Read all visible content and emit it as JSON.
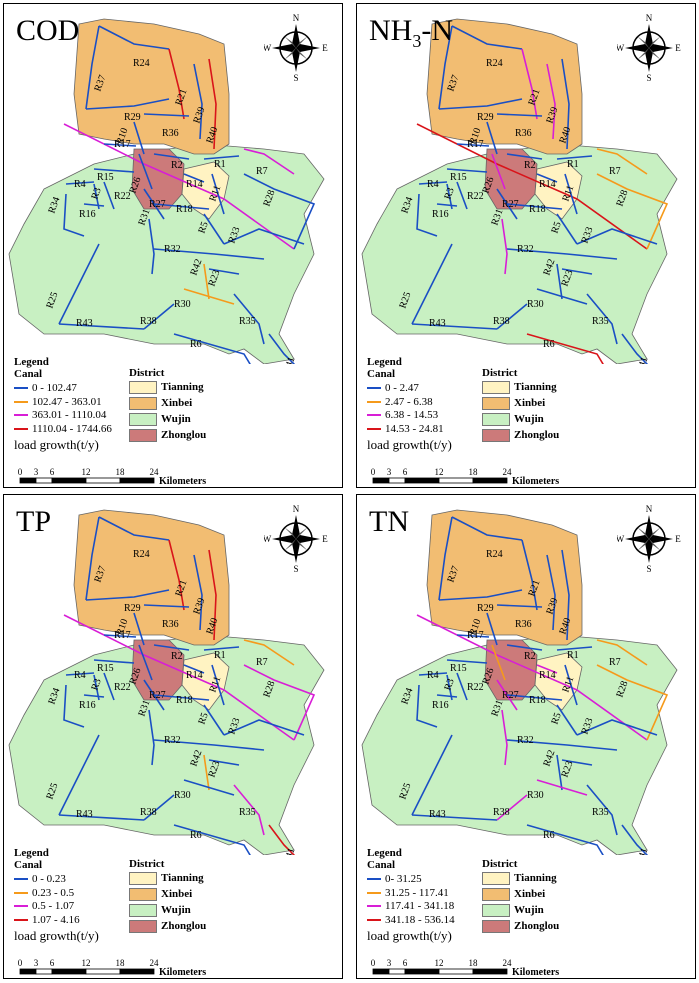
{
  "colors": {
    "class1": "#1a4fc4",
    "class2": "#f59a1b",
    "class3": "#d81ed6",
    "class4": "#d9141a",
    "tianning": "#fff3c2",
    "xinbei": "#f2bd72",
    "wujin": "#c8f0c2",
    "zhonglou": "#cc7a7a"
  },
  "legend": {
    "title": "Legend",
    "canal": "Canal",
    "load_label": "load growth(t/y)",
    "district_title": "District",
    "districts": [
      "Tianning",
      "Xinbei",
      "Wujin",
      "Zhonglou"
    ]
  },
  "compass": {
    "n": "N",
    "s": "S",
    "e": "E",
    "w": "W"
  },
  "scalebar": {
    "ticks": [
      "0",
      "3",
      "6",
      "12",
      "18",
      "24"
    ],
    "unit": "Kilometers"
  },
  "river_labels": [
    "R24",
    "R37",
    "R29",
    "R21",
    "R36",
    "R39",
    "R10",
    "R17",
    "R2",
    "R40",
    "R1",
    "R7",
    "R26",
    "R14",
    "R15",
    "R4",
    "R3",
    "R22",
    "R27",
    "R11",
    "R34",
    "R16",
    "R18",
    "R28",
    "R5",
    "R33",
    "R31",
    "R32",
    "R42",
    "R23",
    "R25",
    "R30",
    "R43",
    "R35",
    "R38",
    "R6",
    "R41"
  ],
  "panels": [
    {
      "title": "COD",
      "classes": [
        "0 - 102.47",
        "102.47 - 363.01",
        "363.01 - 1110.04",
        "1110.04 - 1744.66"
      ]
    },
    {
      "title": "NH3-N",
      "title_main": "NH",
      "title_sub": "3",
      "title_tail": "-N",
      "classes": [
        "0 - 2.47",
        "2.47 - 6.38",
        "6.38 - 14.53",
        "14.53 - 24.81"
      ]
    },
    {
      "title": "TP",
      "classes": [
        "0 - 0.23",
        "0.23 - 0.5",
        "0.5 - 1.07",
        "1.07 - 4.16"
      ]
    },
    {
      "title": "TN",
      "classes": [
        "0- 31.25",
        "31.25 - 117.41",
        "117.41 - 341.18",
        "341.18 - 536.14"
      ]
    }
  ]
}
